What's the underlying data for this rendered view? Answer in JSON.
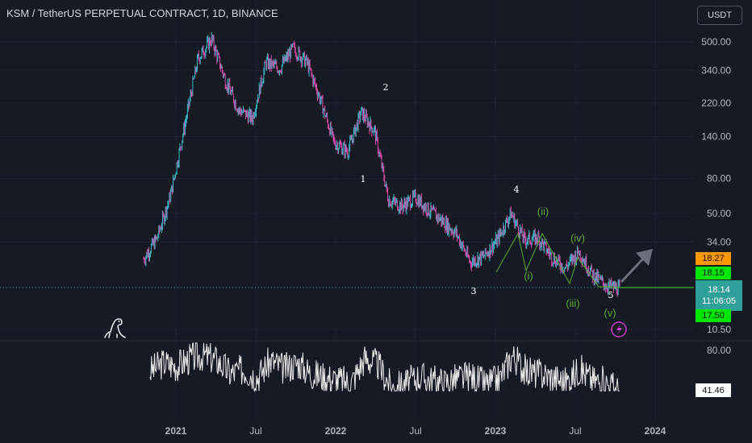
{
  "header": {
    "title": "KSM / TetherUS PERPETUAL CONTRACT, 1D, BINANCE",
    "currency_button": "USDT"
  },
  "price_axis": {
    "ticks": [
      "500.00",
      "340.00",
      "220.00",
      "140.00",
      "80.00",
      "50.00",
      "34.00",
      "10.50"
    ],
    "scale": "log"
  },
  "tags": {
    "high": {
      "value": "18.27",
      "color": "#ff9800"
    },
    "open": {
      "value": "18.15",
      "color": "#00e600"
    },
    "current": {
      "value": "18.14",
      "countdown": "11:06:05",
      "color": "#2f9f99"
    },
    "low": {
      "value": "17.50",
      "color": "#00e600"
    }
  },
  "oscillator": {
    "axis_tick": "80.00",
    "current": "41.46"
  },
  "time_axis": [
    "2021",
    "Jul",
    "2022",
    "Jul",
    "2023",
    "Jul",
    "2024"
  ],
  "wave_labels": {
    "primary": [
      "1",
      "2",
      "3",
      "4",
      "5"
    ],
    "minor": [
      "(i)",
      "(ii)",
      "(iii)",
      "(iv)",
      "(v)"
    ]
  },
  "icons": {
    "logo": "dinosaur-logo-icon",
    "alert": "lightning-alert-icon",
    "projection": "up-right-arrow-icon"
  },
  "colors": {
    "background": "#161a25",
    "candles_up": "#3ab8c4",
    "candles_down": "#d54aa6",
    "wave_minor": "#57a52f",
    "oscillator_line": "#e8e8e8"
  },
  "chart_data": {
    "type": "line",
    "title": "KSM / TetherUS PERPETUAL CONTRACT, 1D, BINANCE",
    "yscale": "log",
    "ylim": [
      10.5,
      700
    ],
    "x": [
      "2020-11",
      "2020-12",
      "2021-01",
      "2021-02",
      "2021-03",
      "2021-04",
      "2021-05",
      "2021-06",
      "2021-07",
      "2021-08",
      "2021-09",
      "2021-10",
      "2021-11",
      "2021-12",
      "2022-01",
      "2022-02",
      "2022-03",
      "2022-04",
      "2022-05",
      "2022-06",
      "2022-07",
      "2022-08",
      "2022-09",
      "2022-10",
      "2022-11",
      "2022-12",
      "2023-01",
      "2023-02",
      "2023-03",
      "2023-04",
      "2023-05",
      "2023-06",
      "2023-07",
      "2023-08",
      "2023-09",
      "2023-10"
    ],
    "series": [
      {
        "values": [
          27,
          36,
          65,
          160,
          400,
          520,
          300,
          200,
          180,
          380,
          350,
          460,
          380,
          230,
          130,
          115,
          195,
          150,
          60,
          55,
          62,
          52,
          45,
          38,
          26,
          28,
          35,
          50,
          35,
          36,
          28,
          24,
          30,
          22,
          19,
          18.14
        ]
      },
      {
        "values": [
          60,
          68,
          65,
          72,
          75,
          70,
          58,
          62,
          55,
          70,
          62,
          68,
          58,
          55,
          52,
          50,
          72,
          66,
          45,
          48,
          55,
          52,
          50,
          54,
          55,
          48,
          52,
          75,
          60,
          58,
          55,
          50,
          62,
          52,
          50,
          41.46
        ]
      }
    ],
    "grid": true
  }
}
